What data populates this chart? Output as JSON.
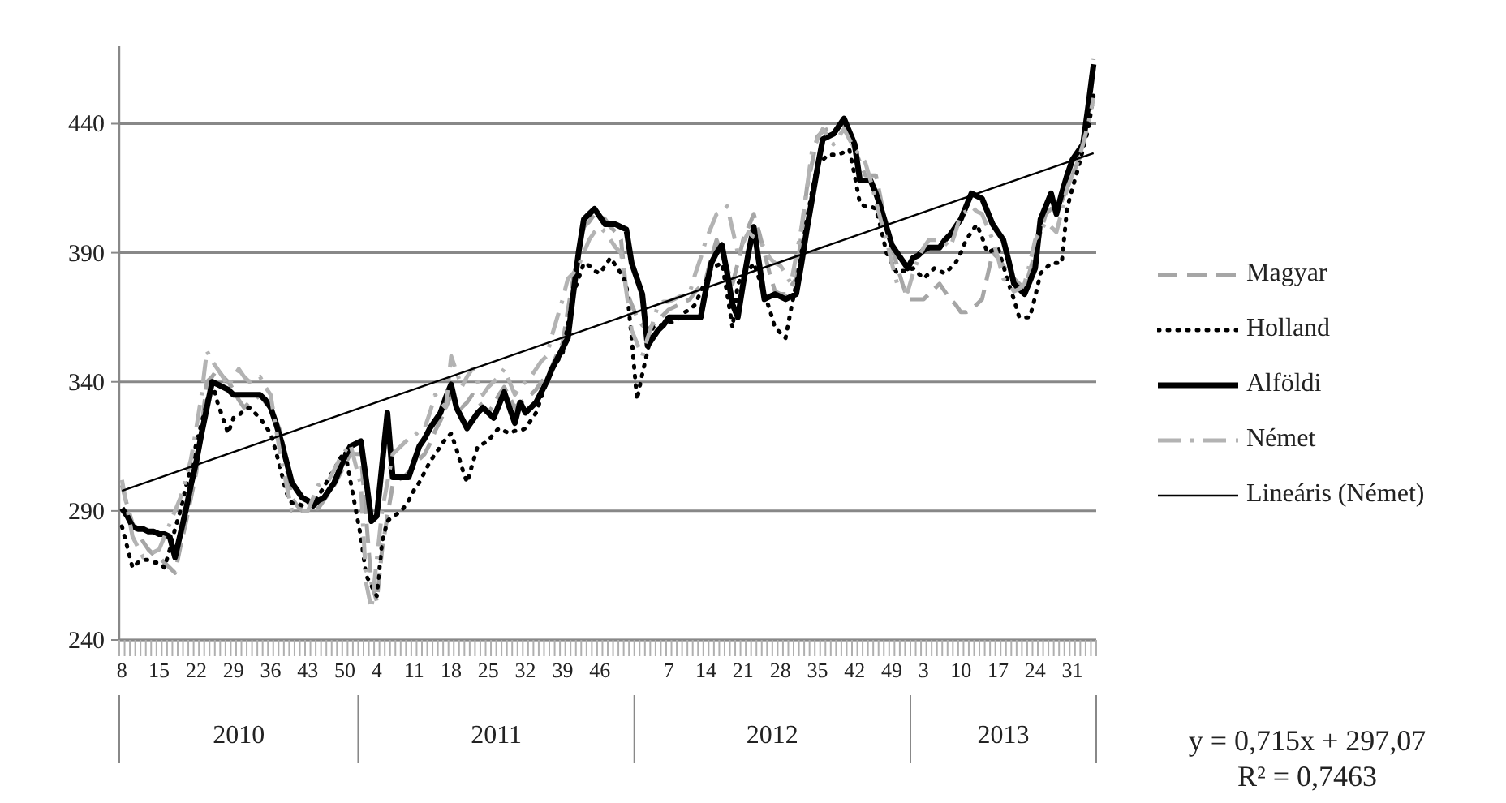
{
  "chart_data": {
    "type": "line",
    "categories": [
      "8",
      null,
      null,
      null,
      null,
      null,
      null,
      "15",
      null,
      null,
      null,
      null,
      null,
      null,
      "22",
      null,
      null,
      null,
      null,
      null,
      null,
      "29",
      null,
      null,
      null,
      null,
      null,
      null,
      "36",
      null,
      null,
      null,
      null,
      null,
      null,
      "43",
      null,
      null,
      null,
      null,
      null,
      null,
      "50",
      null,
      null,
      null,
      null,
      null,
      "4",
      null,
      null,
      null,
      null,
      null,
      null,
      "11",
      null,
      null,
      null,
      null,
      null,
      null,
      "18",
      null,
      null,
      null,
      null,
      null,
      null,
      "25",
      null,
      null,
      null,
      null,
      null,
      null,
      "32",
      null,
      null,
      null,
      null,
      null,
      null,
      "39",
      null,
      null,
      null,
      null,
      null,
      null,
      "46",
      null,
      null,
      null,
      null,
      null,
      null,
      null,
      null,
      null,
      null,
      null,
      null,
      "7",
      null,
      null,
      null,
      null,
      null,
      null,
      "14",
      null,
      null,
      null,
      null,
      null,
      null,
      "21",
      null,
      null,
      null,
      null,
      null,
      null,
      "28",
      null,
      null,
      null,
      null,
      null,
      null,
      "35",
      null,
      null,
      null,
      null,
      null,
      null,
      "42",
      null,
      null,
      null,
      null,
      null,
      null,
      "49",
      null,
      null,
      null,
      null,
      null,
      "3",
      null,
      null,
      null,
      null,
      null,
      null,
      "10",
      null,
      null,
      null,
      null,
      null,
      null,
      "17",
      null,
      null,
      null,
      null,
      null,
      null,
      "24",
      null,
      null,
      null,
      null,
      null,
      null,
      "31",
      null,
      null,
      null,
      null
    ],
    "ylim": [
      240,
      470
    ],
    "yticks": [
      240,
      290,
      340,
      390,
      440
    ],
    "grid": "y",
    "legend": "right",
    "marker": "none",
    "annotations": [
      "2010",
      "2011",
      "2012",
      "2013",
      "y = 0,715x + 297,07",
      "R² = 0,7463"
    ],
    "series": [
      {
        "name": "Magyar",
        "color": "#a6a6a6",
        "line_style": "dashed",
        "values": [
          300,
          292,
          285,
          282,
          278,
          275,
          273,
          272,
          270,
          268,
          266,
          276,
          285,
          295,
          305,
          322,
          340,
          342,
          345,
          342,
          340,
          337,
          333,
          330,
          332,
          333,
          335,
          332,
          330,
          325,
          320,
          307,
          295,
          292,
          290,
          290,
          291,
          291,
          294,
          297,
          300,
          304,
          308,
          312,
          312,
          312,
          287,
          262,
          255,
          275,
          288,
          300,
          302,
          303,
          305,
          307,
          310,
          312,
          316,
          321,
          325,
          330,
          335,
          332,
          330,
          332,
          335,
          333,
          330,
          328,
          331,
          335,
          338,
          334,
          330,
          332,
          333,
          335,
          337,
          340,
          342,
          346,
          351,
          355,
          368,
          380,
          390,
          400,
          402,
          405,
          404,
          403,
          400,
          398,
          395,
          375,
          370,
          365,
          362,
          360,
          362,
          364,
          366,
          368,
          369,
          370,
          371,
          372,
          375,
          377,
          380,
          388,
          395,
          389,
          384,
          378,
          386,
          395,
          400,
          405,
          398,
          390,
          382,
          375,
          374,
          374,
          377,
          380,
          398,
          415,
          425,
          435,
          437,
          438,
          439,
          439,
          440,
          435,
          430,
          425,
          420,
          420,
          420,
          410,
          400,
          392,
          385,
          378,
          372,
          372,
          372,
          372,
          374,
          376,
          378,
          375,
          372,
          370,
          367,
          367,
          368,
          370,
          372,
          381,
          390,
          388,
          385,
          382,
          380,
          378,
          376,
          383,
          390,
          398,
          405,
          407,
          408,
          410,
          415,
          420,
          425,
          430,
          448,
          465
        ]
      },
      {
        "name": "Holland",
        "color": "#000000",
        "line_style": "dotted",
        "values": [
          284,
          276,
          268,
          270,
          271,
          271,
          270,
          270,
          268,
          275,
          283,
          290,
          299,
          307,
          316,
          324,
          332,
          340,
          332,
          326,
          320,
          326,
          327,
          329,
          330,
          328,
          326,
          323,
          320,
          313,
          305,
          297,
          293,
          293,
          292,
          292,
          292,
          296,
          299,
          303,
          306,
          310,
          313,
          302,
          291,
          280,
          265,
          261,
          257,
          278,
          286,
          288,
          289,
          291,
          294,
          298,
          301,
          305,
          309,
          312,
          315,
          318,
          320,
          314,
          307,
          301,
          308,
          315,
          316,
          317,
          320,
          322,
          321,
          320,
          321,
          321,
          322,
          325,
          328,
          334,
          340,
          345,
          348,
          351,
          362,
          374,
          380,
          386,
          385,
          383,
          382,
          385,
          388,
          385,
          382,
          378,
          357,
          333,
          343,
          352,
          361,
          362,
          362,
          363,
          363,
          365,
          367,
          368,
          370,
          375,
          379,
          384,
          385,
          386,
          374,
          361,
          378,
          381,
          383,
          386,
          380,
          374,
          368,
          361,
          359,
          357,
          368,
          378,
          390,
          403,
          414,
          424,
          426,
          428,
          428,
          428,
          429,
          430,
          420,
          409,
          408,
          408,
          407,
          399,
          390,
          386,
          382,
          383,
          383,
          384,
          382,
          380,
          382,
          384,
          383,
          382,
          384,
          386,
          390,
          395,
          398,
          401,
          396,
          390,
          391,
          392,
          385,
          378,
          372,
          365,
          365,
          365,
          373,
          382,
          384,
          386,
          386,
          386,
          407,
          415,
          422,
          430,
          438,
          451
        ]
      },
      {
        "name": "Alföldi",
        "color": "#000000",
        "line_style": "solid",
        "values": [
          291,
          288,
          284,
          283,
          283,
          282,
          282,
          281,
          281,
          280,
          272,
          281,
          290,
          300,
          309,
          320,
          330,
          340,
          339,
          338,
          337,
          335,
          335,
          335,
          335,
          335,
          335,
          333,
          330,
          324,
          317,
          309,
          301,
          298,
          295,
          294,
          292,
          294,
          295,
          298,
          301,
          306,
          311,
          315,
          316,
          317,
          302,
          286,
          288,
          308,
          328,
          303,
          303,
          303,
          303,
          309,
          315,
          318,
          322,
          325,
          328,
          334,
          339,
          330,
          326,
          322,
          325,
          328,
          330,
          328,
          326,
          331,
          336,
          330,
          324,
          332,
          328,
          330,
          332,
          336,
          340,
          345,
          349,
          353,
          357,
          374,
          390,
          403,
          405,
          407,
          404,
          401,
          401,
          401,
          400,
          399,
          386,
          380,
          374,
          354,
          357,
          360,
          362,
          365,
          365,
          365,
          365,
          365,
          365,
          365,
          376,
          386,
          390,
          393,
          382,
          370,
          365,
          378,
          390,
          400,
          386,
          372,
          373,
          374,
          373,
          372,
          373,
          374,
          386,
          399,
          411,
          423,
          434,
          435,
          436,
          439,
          442,
          437,
          432,
          418,
          418,
          418,
          413,
          407,
          400,
          393,
          390,
          387,
          384,
          388,
          389,
          391,
          392,
          392,
          392,
          395,
          397,
          400,
          403,
          408,
          413,
          412,
          411,
          406,
          401,
          398,
          395,
          387,
          378,
          376,
          374,
          379,
          384,
          403,
          408,
          413,
          405,
          413,
          420,
          426,
          429,
          432,
          447,
          463
        ]
      },
      {
        "name": "Német",
        "color": "#b3b3b3",
        "line_style": "dashdot",
        "values": [
          302,
          291,
          280,
          276,
          272,
          273,
          274,
          275,
          280,
          285,
          290,
          295,
          302,
          310,
          322,
          335,
          352,
          348,
          345,
          342,
          338,
          342,
          345,
          342,
          340,
          341,
          342,
          338,
          335,
          322,
          310,
          300,
          290,
          290,
          290,
          290,
          295,
          300,
          301,
          302,
          306,
          310,
          313,
          316,
          308,
          300,
          262,
          252,
          271,
          290,
          301,
          312,
          314,
          316,
          318,
          319,
          321,
          322,
          328,
          335,
          332,
          330,
          350,
          344,
          338,
          342,
          345,
          340,
          335,
          338,
          340,
          342,
          345,
          340,
          335,
          338,
          340,
          342,
          345,
          348,
          350,
          358,
          365,
          372,
          380,
          382,
          385,
          390,
          395,
          398,
          400,
          398,
          395,
          392,
          390,
          375,
          360,
          355,
          350,
          357,
          363,
          370,
          371,
          371,
          372,
          373,
          374,
          375,
          382,
          388,
          395,
          400,
          405,
          406,
          408,
          399,
          390,
          394,
          398,
          396,
          395,
          392,
          388,
          386,
          385,
          382,
          378,
          389,
          400,
          415,
          430,
          434,
          438,
          435,
          432,
          435,
          438,
          434,
          430,
          428,
          425,
          418,
          410,
          402,
          395,
          386,
          378,
          376,
          375,
          382,
          388,
          392,
          395,
          395,
          395,
          394,
          392,
          398,
          405,
          406,
          408,
          406,
          405,
          400,
          395,
          388,
          380,
          378,
          375,
          376,
          378,
          386,
          395,
          398,
          402,
          400,
          398,
          406,
          415,
          420,
          425,
          432,
          440,
          450
        ]
      },
      {
        "name": "Lineáris (Német)",
        "color": "#000000",
        "line_style": "solid",
        "values": [
          297.8,
          null,
          null,
          null,
          null,
          null,
          null,
          null,
          null,
          null,
          null,
          null,
          null,
          null,
          null,
          null,
          null,
          null,
          null,
          null,
          null,
          null,
          null,
          null,
          null,
          null,
          null,
          null,
          null,
          null,
          null,
          null,
          null,
          null,
          null,
          null,
          null,
          null,
          null,
          null,
          null,
          null,
          null,
          null,
          null,
          null,
          null,
          null,
          null,
          null,
          null,
          null,
          null,
          null,
          null,
          null,
          null,
          null,
          null,
          null,
          null,
          null,
          null,
          null,
          null,
          null,
          null,
          null,
          null,
          null,
          null,
          null,
          null,
          null,
          null,
          null,
          null,
          null,
          null,
          null,
          null,
          null,
          null,
          null,
          null,
          null,
          null,
          null,
          null,
          null,
          null,
          null,
          null,
          null,
          null,
          null,
          null,
          null,
          null,
          null,
          null,
          null,
          null,
          null,
          null,
          null,
          null,
          null,
          null,
          null,
          null,
          null,
          null,
          null,
          null,
          null,
          null,
          null,
          null,
          null,
          null,
          null,
          null,
          null,
          null,
          null,
          null,
          null,
          null,
          null,
          null,
          null,
          null,
          null,
          null,
          null,
          null,
          null,
          null,
          null,
          null,
          null,
          null,
          null,
          null,
          null,
          null,
          null,
          null,
          null,
          null,
          null,
          null,
          null,
          null,
          null,
          null,
          null,
          null,
          null,
          null,
          null,
          null,
          null,
          null,
          null,
          null,
          null,
          null,
          null,
          null,
          null,
          null,
          null,
          null,
          null,
          null,
          null,
          null,
          null,
          null,
          null,
          null,
          428.6
        ]
      }
    ]
  }
}
